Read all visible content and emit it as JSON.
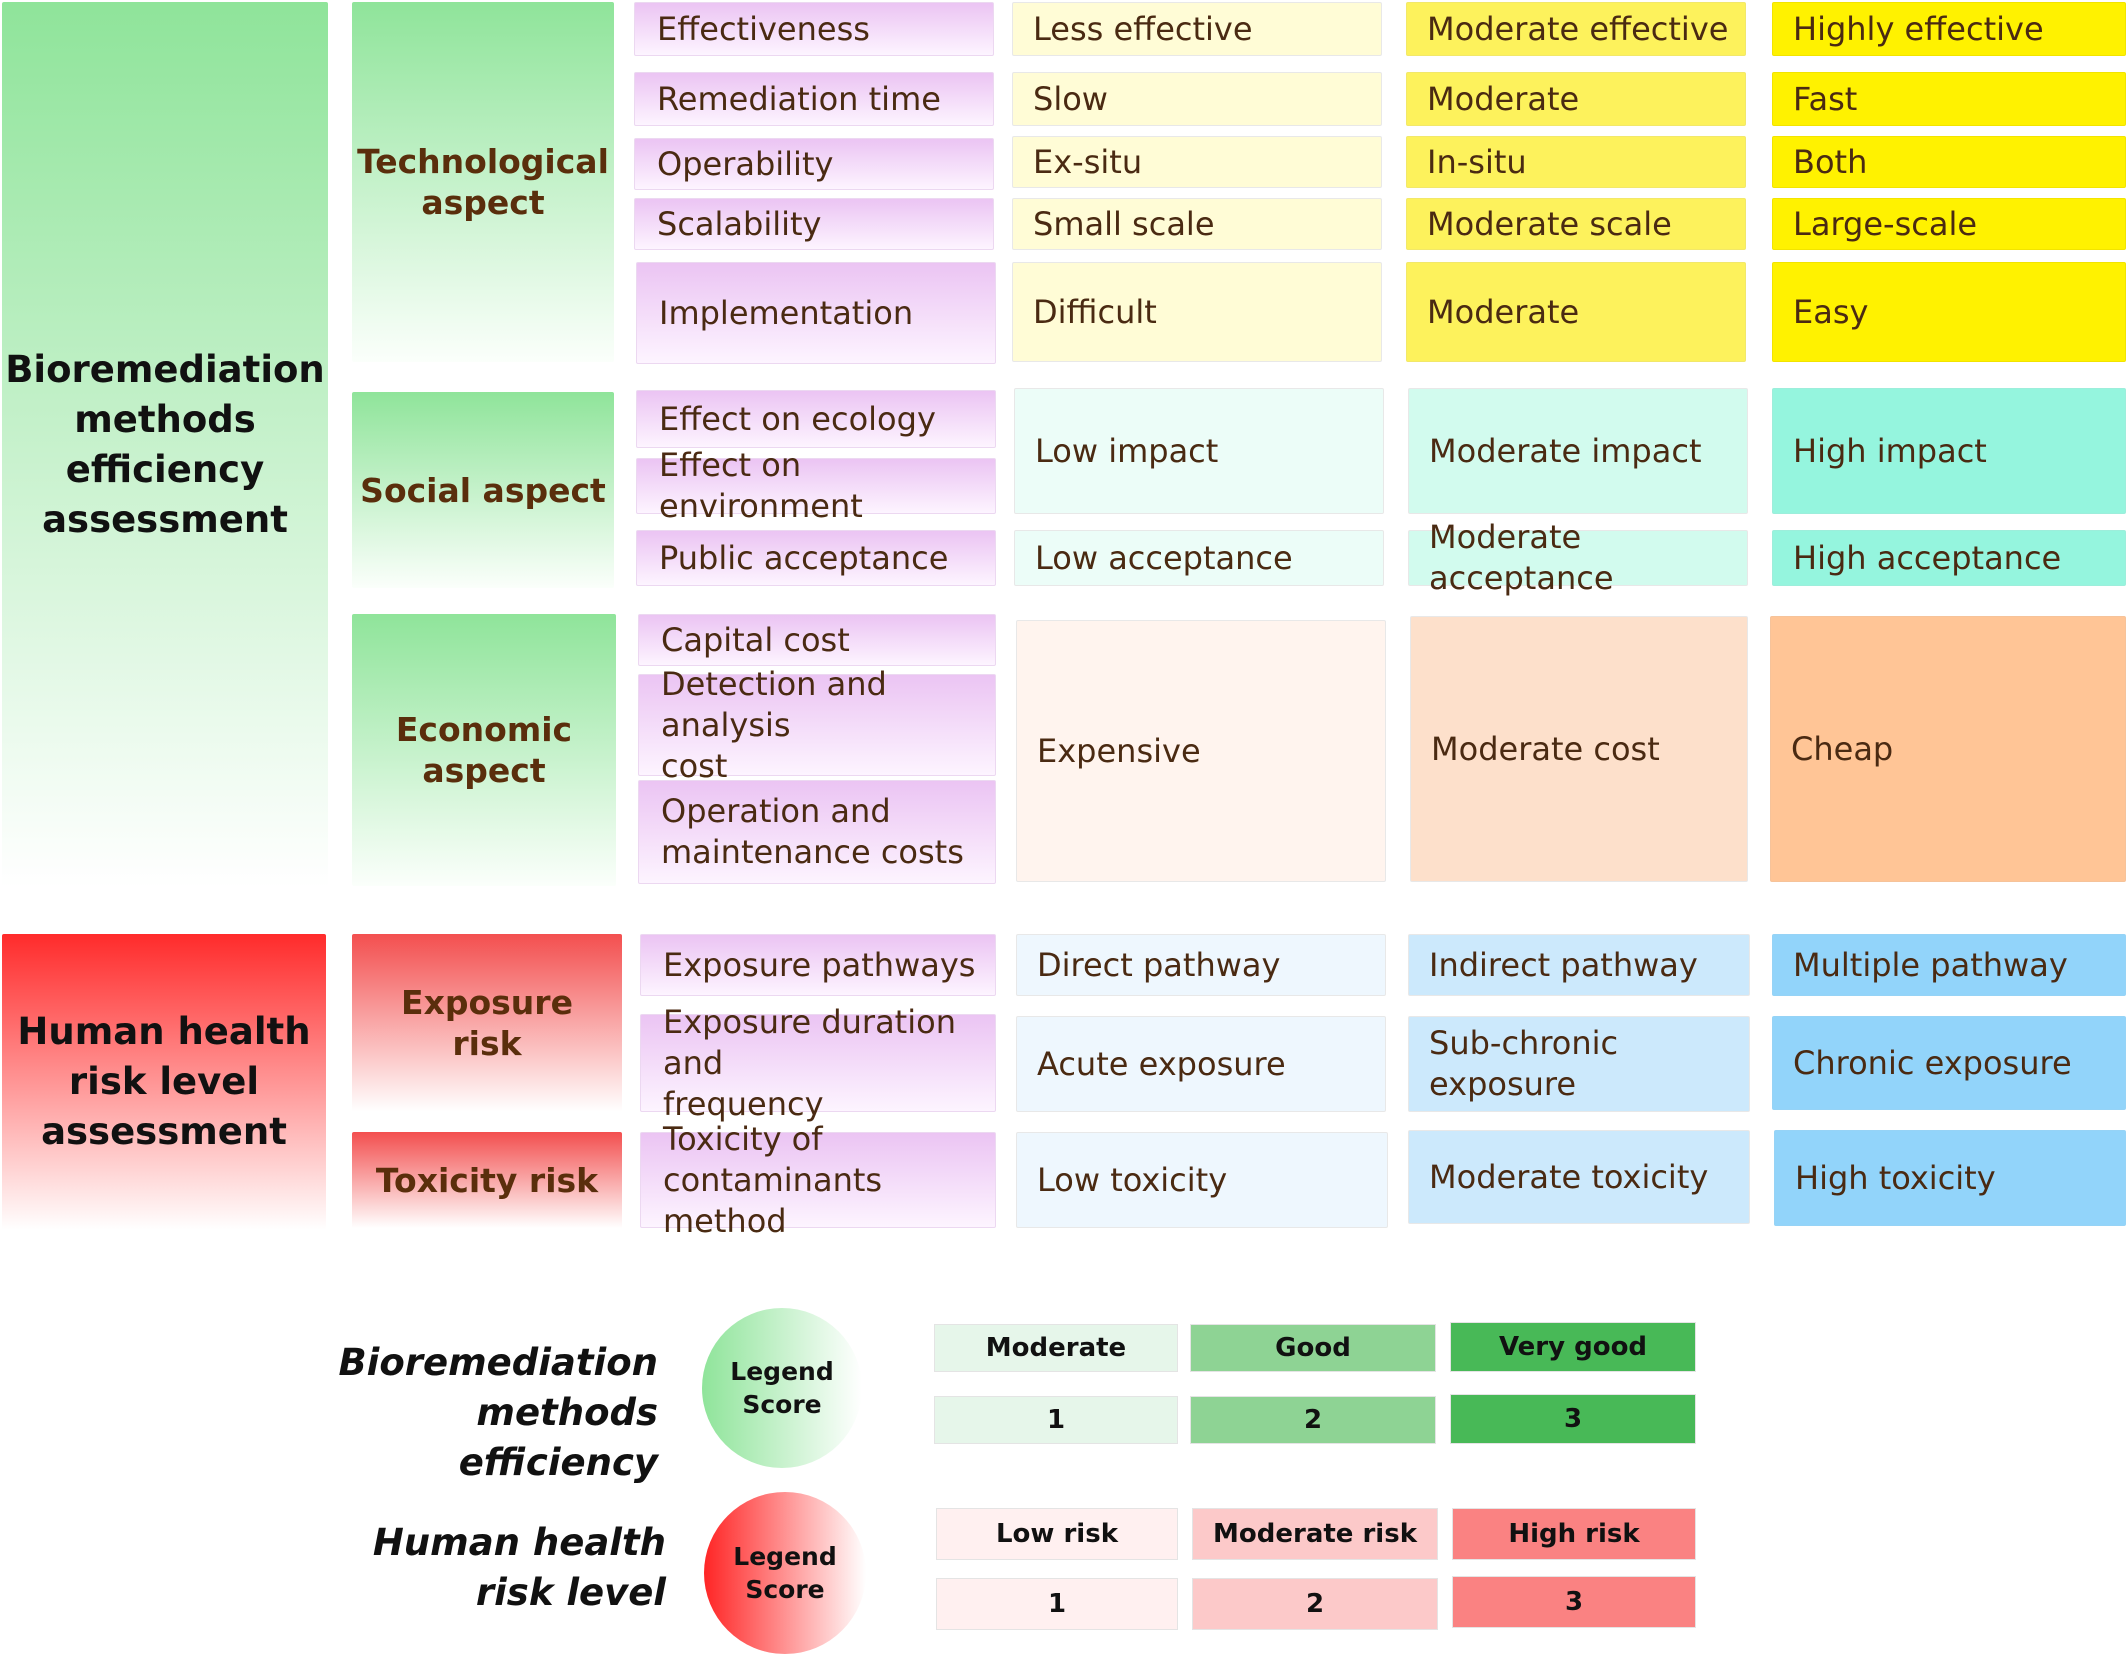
{
  "bio": {
    "title": [
      "Bioremediation",
      "methods",
      "efficiency",
      "assessment"
    ],
    "technological": {
      "label": [
        "Technological",
        "aspect"
      ],
      "rows": [
        {
          "criterion": "Effectiveness",
          "low": "Less effective",
          "mid": "Moderate effective",
          "high": "Highly effective"
        },
        {
          "criterion": "Remediation time",
          "low": "Slow",
          "mid": "Moderate",
          "high": "Fast"
        },
        {
          "criterion": "Operability",
          "low": "Ex-situ",
          "mid": "In-situ",
          "high": "Both"
        },
        {
          "criterion": "Scalability",
          "low": "Small scale",
          "mid": "Moderate scale",
          "high": "Large-scale"
        },
        {
          "criterion": "Implementation",
          "low": "Difficult",
          "mid": "Moderate",
          "high": "Easy"
        }
      ]
    },
    "social": {
      "label": [
        "Social aspect"
      ],
      "criteria": [
        "Effect on ecology",
        "Effect on environment",
        "Public acceptance"
      ],
      "impact": {
        "low": "Low impact",
        "mid": "Moderate impact",
        "high": "High impact"
      },
      "acceptance": {
        "low": "Low acceptance",
        "mid": "Moderate acceptance",
        "high": "High acceptance"
      }
    },
    "economic": {
      "label": [
        "Economic",
        "aspect"
      ],
      "criteria": [
        [
          "Capital cost"
        ],
        [
          "Detection and analysis",
          "cost"
        ],
        [
          "Operation and",
          "maintenance costs"
        ]
      ],
      "levels": {
        "low": "Expensive",
        "mid": "Moderate cost",
        "high": "Cheap"
      }
    }
  },
  "health": {
    "title": [
      "Human health",
      "risk level",
      "assessment"
    ],
    "exposure": {
      "label": [
        "Exposure",
        "risk"
      ],
      "rows": [
        {
          "criterion": [
            "Exposure pathways"
          ],
          "low": "Direct pathway",
          "mid": "Indirect pathway",
          "high": "Multiple pathway"
        },
        {
          "criterion": [
            "Exposure duration and",
            "frequency"
          ],
          "low": "Acute exposure",
          "mid": "Sub-chronic exposure",
          "high": "Chronic exposure"
        }
      ]
    },
    "toxicity": {
      "label": [
        "Toxicity risk"
      ],
      "criterion": [
        "Toxicity of",
        "contaminants method"
      ],
      "low": "Low toxicity",
      "mid": "Moderate toxicity",
      "high": "High toxicity"
    }
  },
  "legend": {
    "bio": {
      "title": [
        "Bioremediation",
        "methods efficiency"
      ],
      "circle": [
        "Legend",
        "Score"
      ],
      "levels": [
        "Moderate",
        "Good",
        "Very good"
      ],
      "scores": [
        "1",
        "2",
        "3"
      ]
    },
    "health": {
      "title": [
        "Human health",
        "risk level"
      ],
      "circle": [
        "Legend",
        "Score"
      ],
      "levels": [
        "Low risk",
        "Moderate risk",
        "High risk"
      ],
      "scores": [
        "1",
        "2",
        "3"
      ]
    }
  },
  "colors": {
    "technological_scale": [
      "#fffcd6",
      "#fdf25c",
      "#fff200"
    ],
    "social_scale": [
      "#ecfdf8",
      "#d2fbee",
      "#95f5de"
    ],
    "economic_scale": [
      "#fff4ee",
      "#fde0cb",
      "#ffc596"
    ],
    "health_scale": [
      "#eef7fe",
      "#cce9fc",
      "#92d4fa"
    ],
    "bio_legend": [
      "#e6f6ea",
      "#8ed394",
      "#48b957"
    ],
    "risk_legend": [
      "#fff0f0",
      "#fcc9c9",
      "#fa8282"
    ]
  }
}
